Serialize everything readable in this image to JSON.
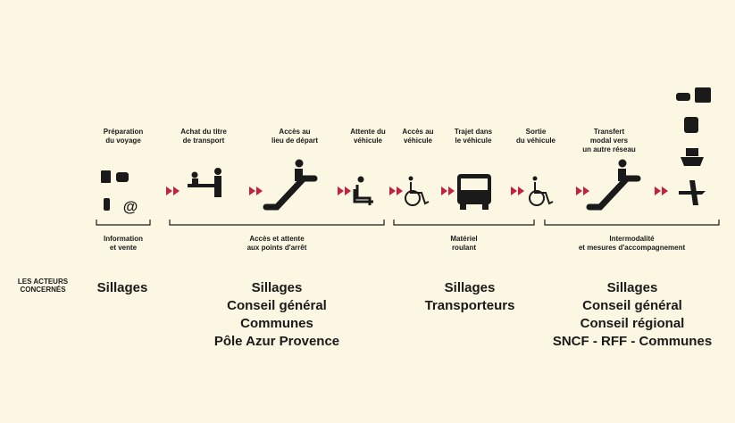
{
  "steps": [
    {
      "label": [
        "Préparation",
        "du voyage"
      ]
    },
    {
      "label": [
        "Achat du titre",
        "de transport"
      ]
    },
    {
      "label": [
        "Accès au",
        "lieu de départ"
      ]
    },
    {
      "label": [
        "Attente du",
        "véhicule"
      ]
    },
    {
      "label": [
        "Accès au",
        "véhicule"
      ]
    },
    {
      "label": [
        "Trajet dans",
        "le véhicule"
      ]
    },
    {
      "label": [
        "Sortie",
        "du véhicule"
      ]
    },
    {
      "label": [
        "Transfert",
        "modal vers",
        "un autre réseau"
      ]
    }
  ],
  "groups": [
    {
      "label": [
        "Information",
        "et vente"
      ]
    },
    {
      "label": [
        "Accès et attente",
        "aux points d'arrêt"
      ]
    },
    {
      "label": [
        "Matériel",
        "roulant"
      ]
    },
    {
      "label": [
        "Intermodalité",
        "et mesures d'accompagnement"
      ]
    }
  ],
  "actors_heading": [
    "LES ACTEURS",
    "CONCERNÉS"
  ],
  "actors": [
    [
      "Sillages"
    ],
    [
      "Sillages",
      "Conseil général",
      "Communes",
      "Pôle Azur Provence"
    ],
    [
      "Sillages",
      "Transporteurs"
    ],
    [
      "Sillages",
      "Conseil général",
      "Conseil régional",
      "SNCF - RFF - Communes"
    ]
  ]
}
